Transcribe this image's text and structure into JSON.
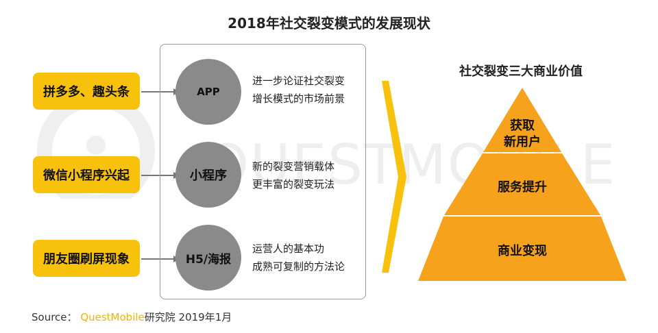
{
  "title": "2018年社交裂变模式的发展现状",
  "watermark": "QUESTMOBILE",
  "left_items": [
    "拼多多、趣头条",
    "微信小程序兴起",
    "朋友圈刷屏现象"
  ],
  "circles": [
    "APP",
    "小程序",
    "H5/海报"
  ],
  "descriptions": [
    [
      "进一步论证社交裂变",
      "增长模式的市场前景"
    ],
    [
      "新的裂变营销载体",
      "更丰富的裂变玩法"
    ],
    [
      "运营人的基本功",
      "成熟可复制的方法论"
    ]
  ],
  "pyramid": {
    "title": "社交裂变三大商业价值",
    "levels": [
      [
        "获取",
        "新用户"
      ],
      [
        "服务提升"
      ],
      [
        "商业变现"
      ]
    ]
  },
  "source": {
    "prefix": "Source：",
    "brand": "QuestMobile",
    "suffix": "研究院 2019年1月"
  },
  "colors": {
    "yellow": "#f8c20c",
    "orange": "#f7a21c",
    "gray": "#8a8a8a"
  }
}
